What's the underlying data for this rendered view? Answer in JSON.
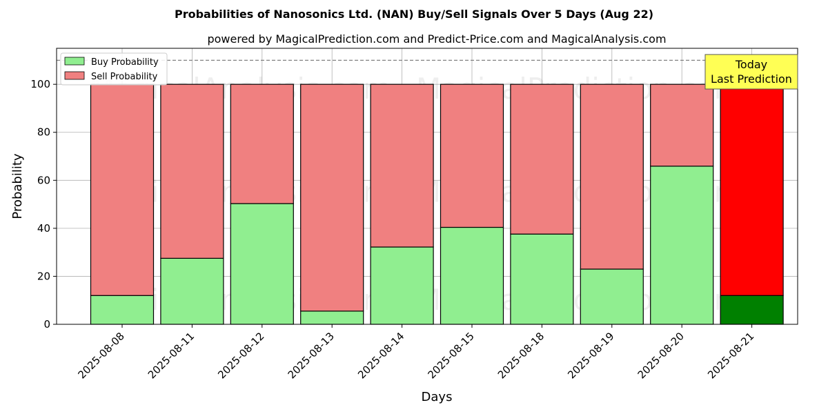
{
  "chart_data": {
    "type": "bar",
    "stacked": true,
    "title": "Probabilities of Nanosonics Ltd. (NAN) Buy/Sell Signals Over 5 Days (Aug 22)",
    "subtitle": "powered by MagicalPrediction.com and Predict-Price.com and MagicalAnalysis.com",
    "xlabel": "Days",
    "ylabel": "Probability",
    "ylim": [
      0,
      115
    ],
    "yticks": [
      0,
      20,
      40,
      60,
      80,
      100
    ],
    "reference_line": 110,
    "grid": true,
    "legend_position": "top-left",
    "categories": [
      "2025-08-08",
      "2025-08-11",
      "2025-08-12",
      "2025-08-13",
      "2025-08-14",
      "2025-08-15",
      "2025-08-18",
      "2025-08-19",
      "2025-08-20",
      "2025-08-21"
    ],
    "series": [
      {
        "name": "Buy Probability",
        "color": "#90ee90",
        "highlight_color": "#008000",
        "values": [
          12,
          27.5,
          50.3,
          5.5,
          32.2,
          40.4,
          37.6,
          23,
          65.9,
          12
        ]
      },
      {
        "name": "Sell Probability",
        "color": "#f08080",
        "highlight_color": "#ff0000",
        "values": [
          88,
          72.5,
          49.7,
          94.5,
          67.8,
          59.6,
          62.4,
          77,
          34.1,
          88
        ]
      }
    ],
    "highlight_index": 9,
    "annotation": {
      "line1": "Today",
      "line2": "Last Prediction",
      "background": "#ffff55"
    },
    "watermarks": [
      "MagicalAnalysis.com",
      "MagicalPrediction.com"
    ]
  }
}
